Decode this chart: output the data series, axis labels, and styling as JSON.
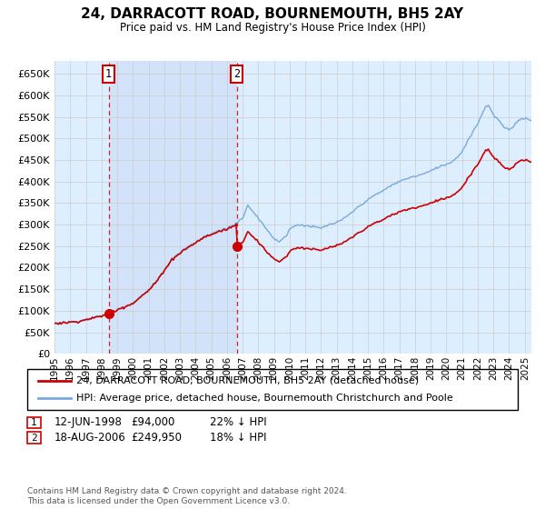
{
  "title": "24, DARRACOTT ROAD, BOURNEMOUTH, BH5 2AY",
  "subtitle": "Price paid vs. HM Land Registry's House Price Index (HPI)",
  "legend_line1": "24, DARRACOTT ROAD, BOURNEMOUTH, BH5 2AY (detached house)",
  "legend_line2": "HPI: Average price, detached house, Bournemouth Christchurch and Poole",
  "transaction1_date": "12-JUN-1998",
  "transaction1_price": "£94,000",
  "transaction1_hpi": "22% ↓ HPI",
  "transaction2_date": "18-AUG-2006",
  "transaction2_price": "£249,950",
  "transaction2_hpi": "18% ↓ HPI",
  "footer": "Contains HM Land Registry data © Crown copyright and database right 2024.\nThis data is licensed under the Open Government Licence v3.0.",
  "hpi_color": "#7aaadd",
  "price_color": "#cc0000",
  "grid_color": "#cccccc",
  "background_color": "#ddeeff",
  "background_between_lines": "#e0eeff",
  "ylim_min": 0,
  "ylim_max": 680000,
  "ytick_step": 50000,
  "vline_color": "#cc0000",
  "box_color": "#cc0000",
  "t1_year_float": 1998.458,
  "t2_year_float": 2006.625,
  "price_t1": 94000,
  "price_t2": 249950
}
